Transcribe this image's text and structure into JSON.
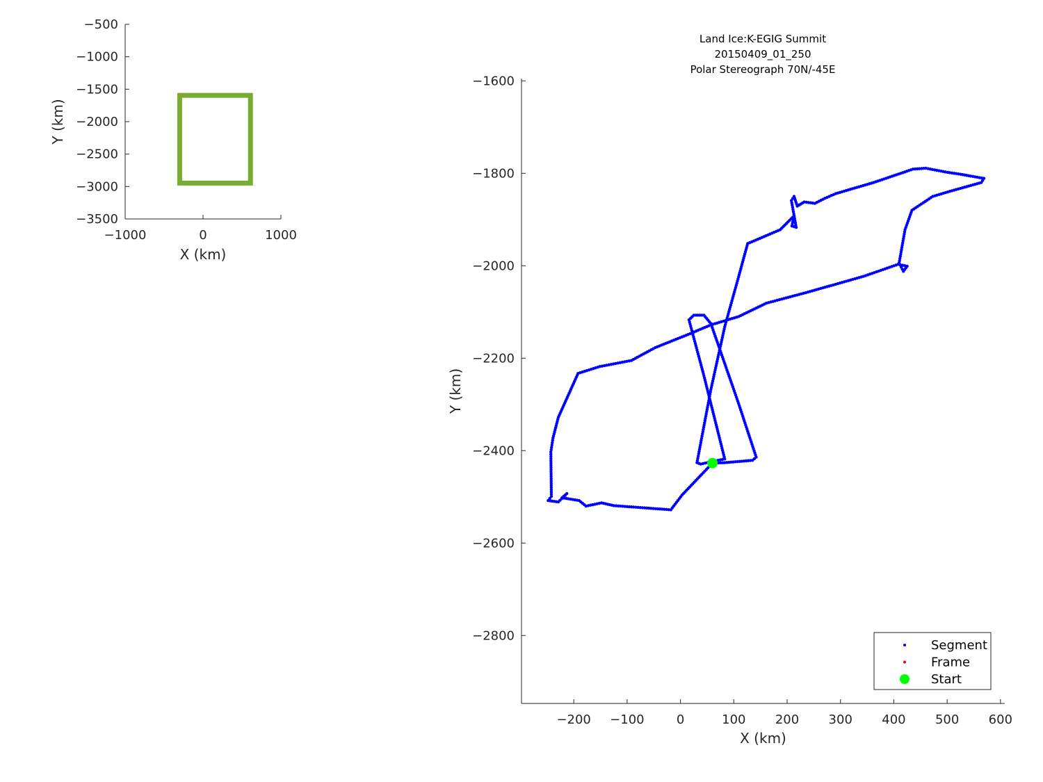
{
  "chart_data": [
    {
      "type": "line",
      "xlabel": "X (km)",
      "ylabel": "Y (km)",
      "xlim": [
        -1000,
        1000
      ],
      "ylim": [
        -3500,
        -500
      ],
      "xticks": [
        -1000,
        0,
        1000
      ],
      "yticks": [
        -500,
        -1000,
        -1500,
        -2000,
        -2500,
        -3000,
        -3500
      ],
      "grid": false,
      "color": "#77AC30",
      "rectangle": {
        "x": [
          -300,
          609
        ],
        "y": [
          -2947,
          -1595
        ]
      }
    },
    {
      "type": "scatter",
      "title": [
        "Land Ice:K-EGIG Summit",
        "20150409_01_250",
        "Polar Stereograph 70N/-45E"
      ],
      "xlabel": "X (km)",
      "ylabel": "Y (km)",
      "xlim": [
        -298,
        608
      ],
      "ylim": [
        -2947,
        -1595
      ],
      "xticks": [
        -200,
        -100,
        0,
        100,
        200,
        300,
        400,
        500,
        600
      ],
      "yticks": [
        -1600,
        -1800,
        -2000,
        -2200,
        -2400,
        -2600,
        -2800
      ],
      "grid": false,
      "legend": {
        "placement": "bottom-right",
        "entries": [
          {
            "name": "Segment",
            "color": "#0000FF"
          },
          {
            "name": "Frame",
            "color": "#FF0000"
          },
          {
            "name": "Start",
            "color": "#00FF00"
          }
        ]
      },
      "start": [
        60,
        -2427
      ],
      "segment_color": "#0000FF",
      "start_color": "#00FF00",
      "segment": [
        [
          60,
          -2427
        ],
        [
          3,
          -2496
        ],
        [
          -18,
          -2528
        ],
        [
          -125,
          -2519
        ],
        [
          -148,
          -2513
        ],
        [
          -177,
          -2520
        ],
        [
          -190,
          -2508
        ],
        [
          -222,
          -2502
        ],
        [
          -213,
          -2493
        ],
        [
          -229,
          -2511
        ],
        [
          -248,
          -2508
        ],
        [
          -242,
          -2499
        ],
        [
          -243,
          -2403
        ],
        [
          -239,
          -2373
        ],
        [
          -229,
          -2328
        ],
        [
          -192,
          -2233
        ],
        [
          -151,
          -2218
        ],
        [
          -92,
          -2205
        ],
        [
          -47,
          -2177
        ],
        [
          18,
          -2147
        ],
        [
          57,
          -2128
        ],
        [
          109,
          -2110
        ],
        [
          161,
          -2081
        ],
        [
          239,
          -2057
        ],
        [
          343,
          -2023
        ],
        [
          408,
          -1997
        ],
        [
          425,
          -2001
        ],
        [
          418,
          -2012
        ],
        [
          410,
          -1994
        ],
        [
          421,
          -1922
        ],
        [
          434,
          -1880
        ],
        [
          473,
          -1850
        ],
        [
          505,
          -1839
        ],
        [
          564,
          -1820
        ],
        [
          569,
          -1811
        ],
        [
          544,
          -1806
        ],
        [
          525,
          -1802
        ],
        [
          501,
          -1798
        ],
        [
          460,
          -1789
        ],
        [
          436,
          -1791
        ],
        [
          362,
          -1820
        ],
        [
          291,
          -1844
        ],
        [
          271,
          -1854
        ],
        [
          252,
          -1865
        ],
        [
          232,
          -1862
        ],
        [
          219,
          -1871
        ],
        [
          213,
          -1850
        ],
        [
          208,
          -1859
        ],
        [
          217,
          -1917
        ],
        [
          209,
          -1914
        ],
        [
          213,
          -1892
        ],
        [
          187,
          -1922
        ],
        [
          126,
          -1952
        ],
        [
          109,
          -2024
        ],
        [
          83,
          -2132
        ],
        [
          57,
          -2268
        ],
        [
          31,
          -2426
        ],
        [
          38,
          -2429
        ],
        [
          83,
          -2418
        ],
        [
          44,
          -2238
        ],
        [
          16,
          -2117
        ],
        [
          25,
          -2107
        ],
        [
          44,
          -2107
        ],
        [
          57,
          -2125
        ],
        [
          109,
          -2298
        ],
        [
          142,
          -2414
        ],
        [
          135,
          -2421
        ],
        [
          83,
          -2426
        ],
        [
          60,
          -2427
        ]
      ]
    }
  ]
}
